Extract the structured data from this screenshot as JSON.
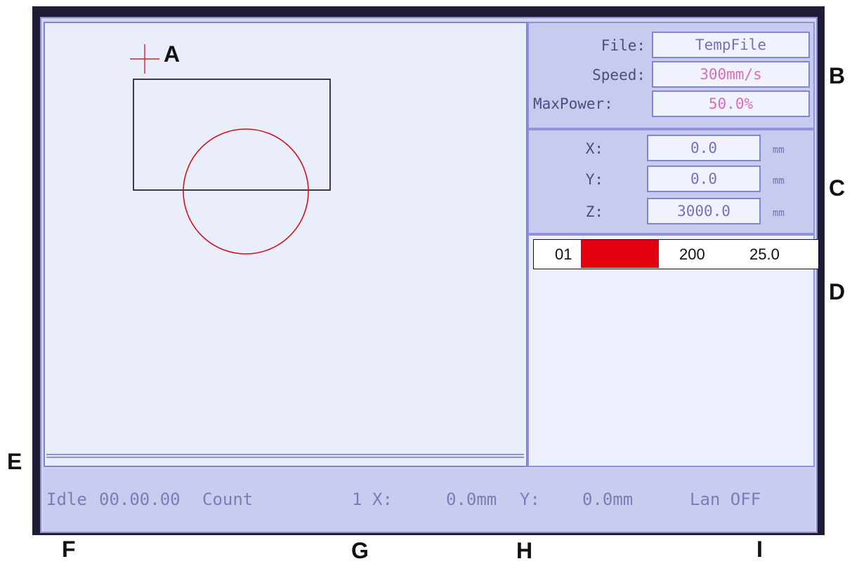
{
  "file_panel": {
    "file_label": "File:",
    "file_value": "TempFile",
    "speed_label": "Speed:",
    "speed_value": "300mm/s",
    "maxpower_label": "MaxPower:",
    "maxpower_value": "50.0%"
  },
  "coord_panel": {
    "x_label": "X:",
    "x_value": "0.0",
    "y_label": "Y:",
    "y_value": "0.0",
    "z_label": "Z:",
    "z_value": "3000.0",
    "unit": "mm"
  },
  "layer_list": {
    "rows": [
      {
        "index": "01",
        "color": "#e3000f",
        "speed": "200",
        "power": "25.0"
      }
    ]
  },
  "status_bar": {
    "state": "Idle",
    "time": "00.00.00",
    "count_label": "Count",
    "count_value": "1",
    "x_label": "X:",
    "x_value": "0.0mm",
    "y_label": "Y:",
    "y_value": "0.0mm",
    "lan": "Lan OFF"
  },
  "annotations": {
    "a": "A",
    "b": "B",
    "c": "C",
    "d": "D",
    "e": "E",
    "f": "F",
    "g": "G",
    "h": "H",
    "i": "I"
  },
  "colors": {
    "screen_background": "#d2d5ef",
    "canvas_background": "#eaedfa",
    "panel_border": "#8f93da",
    "accent_red": "#e3000f",
    "value_pink": "#d66fb8"
  }
}
